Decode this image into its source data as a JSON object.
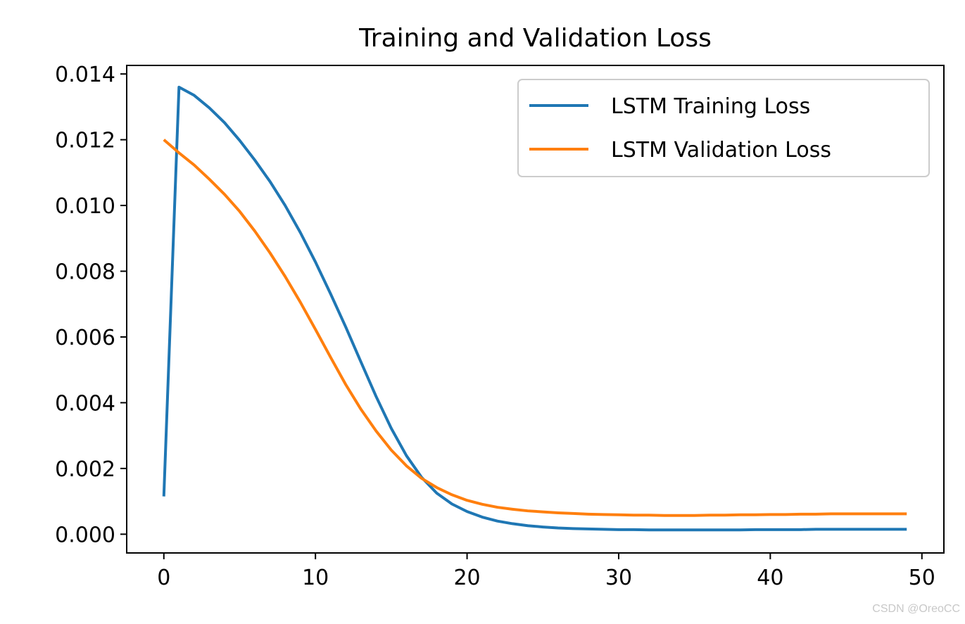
{
  "chart_data": {
    "type": "line",
    "title": "Training and Validation Loss",
    "xlabel": "",
    "ylabel": "",
    "xlim": [
      -2.45,
      51.45
    ],
    "ylim": [
      -0.00057,
      0.01426
    ],
    "xticks": [
      0,
      10,
      20,
      30,
      40,
      50
    ],
    "xtick_labels": [
      "0",
      "10",
      "20",
      "30",
      "40",
      "50"
    ],
    "yticks": [
      0.0,
      0.002,
      0.004,
      0.006,
      0.008,
      0.01,
      0.012,
      0.014
    ],
    "ytick_labels": [
      "0.000",
      "0.002",
      "0.004",
      "0.006",
      "0.008",
      "0.010",
      "0.012",
      "0.014"
    ],
    "grid": false,
    "legend_position": "upper right",
    "x": [
      0,
      1,
      2,
      3,
      4,
      5,
      6,
      7,
      8,
      9,
      10,
      11,
      12,
      13,
      14,
      15,
      16,
      17,
      18,
      19,
      20,
      21,
      22,
      23,
      24,
      25,
      26,
      27,
      28,
      29,
      30,
      31,
      32,
      33,
      34,
      35,
      36,
      37,
      38,
      39,
      40,
      41,
      42,
      43,
      44,
      45,
      46,
      47,
      48,
      49
    ],
    "series": [
      {
        "name": "LSTM Training Loss",
        "color": "#1f77b4",
        "values": [
          0.00115,
          0.0136,
          0.01335,
          0.01297,
          0.01252,
          0.01198,
          0.01138,
          0.01073,
          0.01,
          0.00918,
          0.00828,
          0.00731,
          0.0063,
          0.00524,
          0.00419,
          0.00322,
          0.00239,
          0.00173,
          0.00125,
          0.00092,
          0.00069,
          0.00052,
          0.0004,
          0.00032,
          0.00026,
          0.00022,
          0.00019,
          0.00017,
          0.00016,
          0.00015,
          0.00014,
          0.00014,
          0.00013,
          0.00013,
          0.00013,
          0.00013,
          0.00013,
          0.00013,
          0.00013,
          0.00014,
          0.00014,
          0.00014,
          0.00014,
          0.00015,
          0.00015,
          0.00015,
          0.00015,
          0.00015,
          0.00015,
          0.00015
        ]
      },
      {
        "name": "LSTM Validation Loss",
        "color": "#ff7f0e",
        "values": [
          0.012,
          0.0116,
          0.01123,
          0.0108,
          0.01034,
          0.00982,
          0.00922,
          0.00856,
          0.00784,
          0.00706,
          0.00623,
          0.00538,
          0.00455,
          0.0038,
          0.00314,
          0.00256,
          0.00208,
          0.0017,
          0.00142,
          0.0012,
          0.00103,
          0.00091,
          0.00082,
          0.00076,
          0.00071,
          0.00068,
          0.00065,
          0.00063,
          0.00061,
          0.0006,
          0.00059,
          0.00058,
          0.00058,
          0.00057,
          0.00057,
          0.00057,
          0.00058,
          0.00058,
          0.00059,
          0.00059,
          0.0006,
          0.0006,
          0.00061,
          0.00061,
          0.00062,
          0.00062,
          0.00062,
          0.00062,
          0.00062,
          0.00062
        ]
      }
    ]
  },
  "watermark": "CSDN @OreoCC"
}
